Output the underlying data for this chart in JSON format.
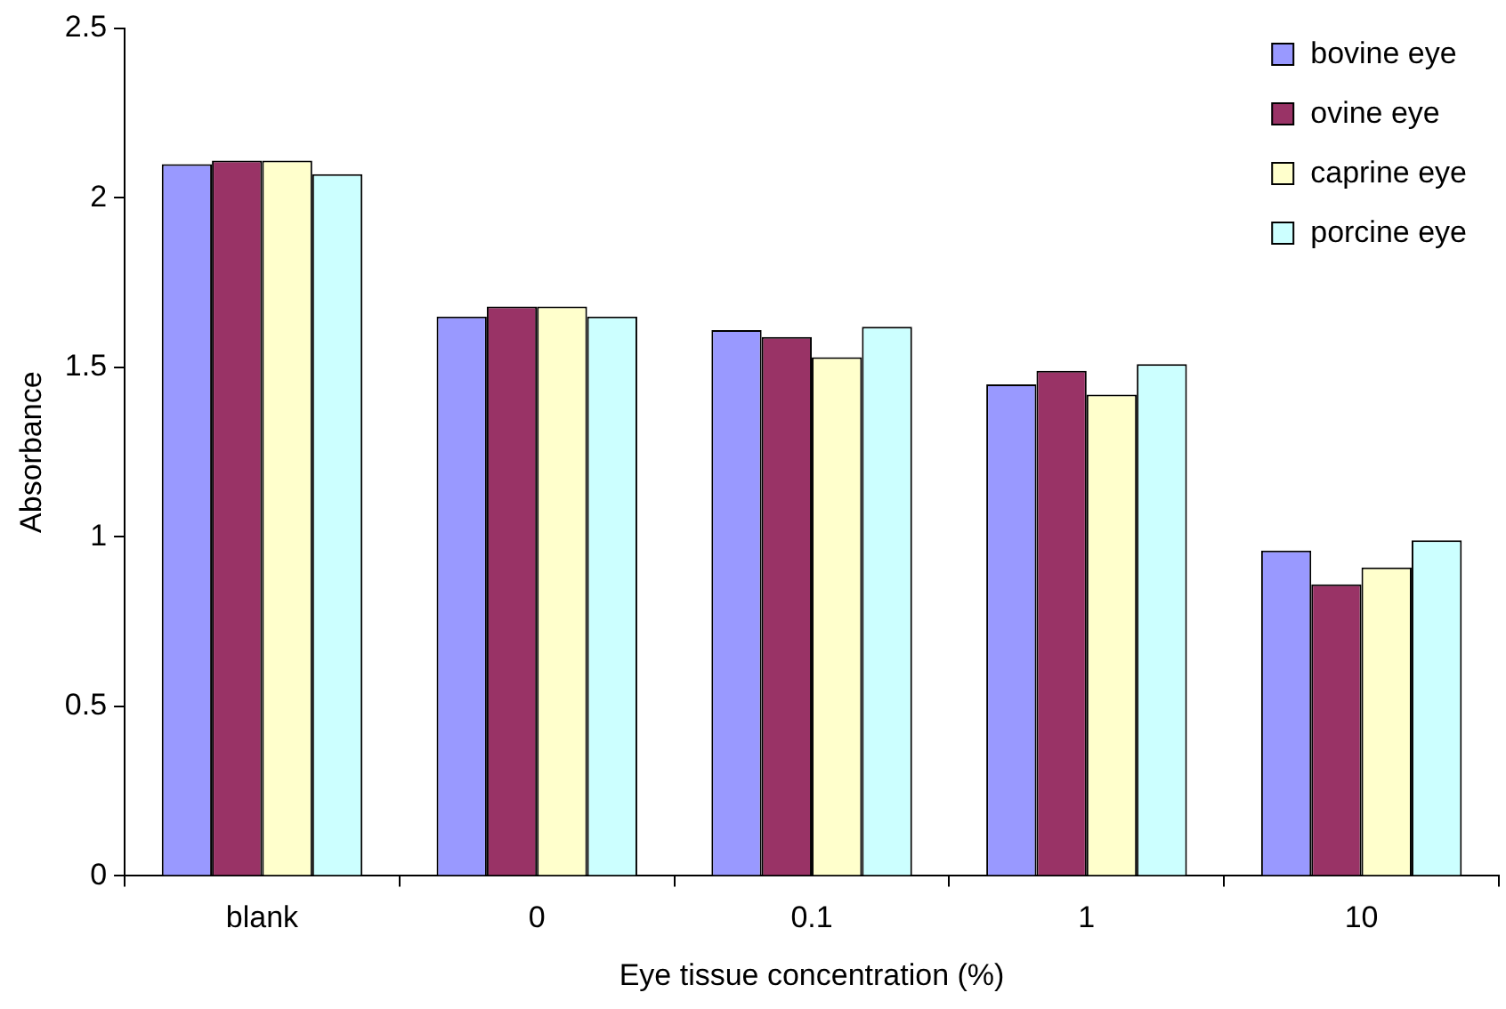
{
  "chart_data": {
    "type": "bar",
    "xlabel": "Eye tissue concentration (%)",
    "ylabel": "Absorbance",
    "categories": [
      "blank",
      "0",
      "0.1",
      "1",
      "10"
    ],
    "series": [
      {
        "name": "bovine eye",
        "color": "#9999ff",
        "values": [
          2.1,
          1.65,
          1.61,
          1.45,
          0.96
        ]
      },
      {
        "name": "ovine eye",
        "color": "#993366",
        "values": [
          2.11,
          1.68,
          1.59,
          1.49,
          0.86
        ]
      },
      {
        "name": "caprine eye",
        "color": "#ffffcc",
        "values": [
          2.11,
          1.68,
          1.53,
          1.42,
          0.91
        ]
      },
      {
        "name": "porcine eye",
        "color": "#ccffff",
        "values": [
          2.07,
          1.65,
          1.62,
          1.51,
          0.99
        ]
      }
    ],
    "ylim": [
      0,
      2.5
    ],
    "yticks": [
      0,
      0.5,
      1,
      1.5,
      2,
      2.5
    ],
    "grid": false,
    "legend": "top right"
  }
}
